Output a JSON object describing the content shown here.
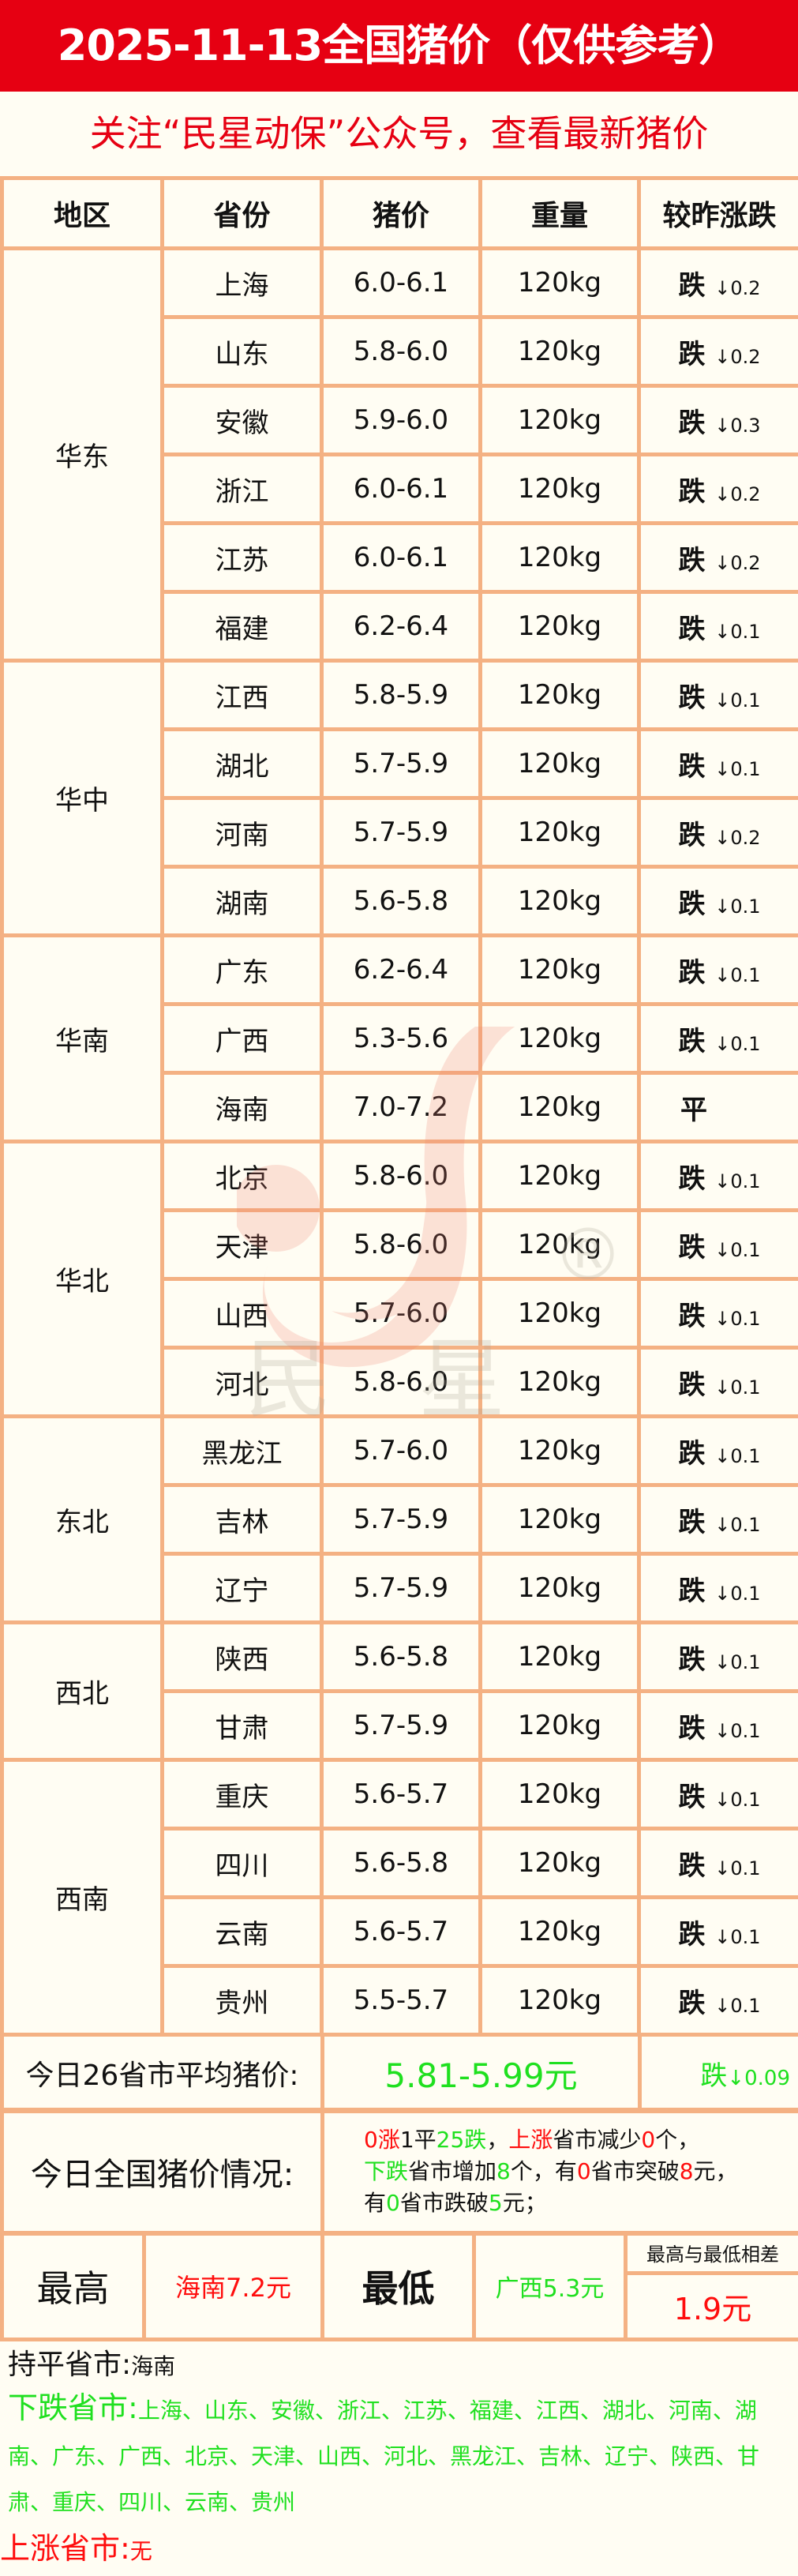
{
  "header": {
    "title": "2025-11-13全国猪价（仅供参考）",
    "subtitle": "关注“民星动保”公众号，查看最新猪价"
  },
  "colors": {
    "red": "#e60012",
    "green": "#1fe01f",
    "border": "#f4b183",
    "background": "#fffdf3"
  },
  "watermark": {
    "brand_text": "民 星",
    "registered": "®"
  },
  "table": {
    "columns": [
      "地区",
      "省份",
      "猪价",
      "重量",
      "较昨涨跌"
    ],
    "groups": [
      {
        "region": "华东",
        "rows": [
          {
            "province": "上海",
            "price": "6.0-6.1",
            "weight": "120kg",
            "trend": "跌",
            "change": "↓0.2"
          },
          {
            "province": "山东",
            "price": "5.8-6.0",
            "weight": "120kg",
            "trend": "跌",
            "change": "↓0.2"
          },
          {
            "province": "安徽",
            "price": "5.9-6.0",
            "weight": "120kg",
            "trend": "跌",
            "change": "↓0.3"
          },
          {
            "province": "浙江",
            "price": "6.0-6.1",
            "weight": "120kg",
            "trend": "跌",
            "change": "↓0.2"
          },
          {
            "province": "江苏",
            "price": "6.0-6.1",
            "weight": "120kg",
            "trend": "跌",
            "change": "↓0.2"
          },
          {
            "province": "福建",
            "price": "6.2-6.4",
            "weight": "120kg",
            "trend": "跌",
            "change": "↓0.1"
          }
        ]
      },
      {
        "region": "华中",
        "rows": [
          {
            "province": "江西",
            "price": "5.8-5.9",
            "weight": "120kg",
            "trend": "跌",
            "change": "↓0.1"
          },
          {
            "province": "湖北",
            "price": "5.7-5.9",
            "weight": "120kg",
            "trend": "跌",
            "change": "↓0.1"
          },
          {
            "province": "河南",
            "price": "5.7-5.9",
            "weight": "120kg",
            "trend": "跌",
            "change": "↓0.2"
          },
          {
            "province": "湖南",
            "price": "5.6-5.8",
            "weight": "120kg",
            "trend": "跌",
            "change": "↓0.1"
          }
        ]
      },
      {
        "region": "华南",
        "rows": [
          {
            "province": "广东",
            "price": "6.2-6.4",
            "weight": "120kg",
            "trend": "跌",
            "change": "↓0.1"
          },
          {
            "province": "广西",
            "price": "5.3-5.6",
            "weight": "120kg",
            "trend": "跌",
            "change": "↓0.1"
          },
          {
            "province": "海南",
            "price": "7.0-7.2",
            "weight": "120kg",
            "trend": "平",
            "change": ""
          }
        ]
      },
      {
        "region": "华北",
        "rows": [
          {
            "province": "北京",
            "price": "5.8-6.0",
            "weight": "120kg",
            "trend": "跌",
            "change": "↓0.1"
          },
          {
            "province": "天津",
            "price": "5.8-6.0",
            "weight": "120kg",
            "trend": "跌",
            "change": "↓0.1"
          },
          {
            "province": "山西",
            "price": "5.7-6.0",
            "weight": "120kg",
            "trend": "跌",
            "change": "↓0.1"
          },
          {
            "province": "河北",
            "price": "5.8-6.0",
            "weight": "120kg",
            "trend": "跌",
            "change": "↓0.1"
          }
        ]
      },
      {
        "region": "东北",
        "rows": [
          {
            "province": "黑龙江",
            "price": "5.7-6.0",
            "weight": "120kg",
            "trend": "跌",
            "change": "↓0.1"
          },
          {
            "province": "吉林",
            "price": "5.7-5.9",
            "weight": "120kg",
            "trend": "跌",
            "change": "↓0.1"
          },
          {
            "province": "辽宁",
            "price": "5.7-5.9",
            "weight": "120kg",
            "trend": "跌",
            "change": "↓0.1"
          }
        ]
      },
      {
        "region": "西北",
        "rows": [
          {
            "province": "陕西",
            "price": "5.6-5.8",
            "weight": "120kg",
            "trend": "跌",
            "change": "↓0.1"
          },
          {
            "province": "甘肃",
            "price": "5.7-5.9",
            "weight": "120kg",
            "trend": "跌",
            "change": "↓0.1"
          }
        ]
      },
      {
        "region": "西南",
        "rows": [
          {
            "province": "重庆",
            "price": "5.6-5.7",
            "weight": "120kg",
            "trend": "跌",
            "change": "↓0.1"
          },
          {
            "province": "四川",
            "price": "5.6-5.8",
            "weight": "120kg",
            "trend": "跌",
            "change": "↓0.1"
          },
          {
            "province": "云南",
            "price": "5.6-5.7",
            "weight": "120kg",
            "trend": "跌",
            "change": "↓0.1"
          },
          {
            "province": "贵州",
            "price": "5.5-5.7",
            "weight": "120kg",
            "trend": "跌",
            "change": "↓0.1"
          }
        ]
      }
    ]
  },
  "average": {
    "label": "今日26省市平均猪价:",
    "value": "5.81-5.99元",
    "trend": "跌",
    "change": "↓0.09"
  },
  "situation": {
    "label": "今日全国猪价情况:",
    "lines": [
      [
        {
          "t": "0",
          "c": "r"
        },
        {
          "t": "涨",
          "c": "r"
        },
        {
          "t": "1平",
          "c": ""
        },
        {
          "t": "25跌",
          "c": "g"
        },
        {
          "t": "，",
          "c": ""
        },
        {
          "t": "上涨",
          "c": "r"
        },
        {
          "t": "省市减少",
          "c": ""
        },
        {
          "t": "0",
          "c": "r"
        },
        {
          "t": "个，",
          "c": ""
        }
      ],
      [
        {
          "t": "下跌",
          "c": "g"
        },
        {
          "t": "省市增加",
          "c": ""
        },
        {
          "t": "8",
          "c": "g"
        },
        {
          "t": "个，有",
          "c": ""
        },
        {
          "t": "0",
          "c": "r"
        },
        {
          "t": "省市突破",
          "c": ""
        },
        {
          "t": "8",
          "c": "r"
        },
        {
          "t": "元，",
          "c": ""
        }
      ],
      [
        {
          "t": "有",
          "c": ""
        },
        {
          "t": "0",
          "c": "g"
        },
        {
          "t": "省市跌破",
          "c": ""
        },
        {
          "t": "5",
          "c": "g"
        },
        {
          "t": "元；",
          "c": ""
        }
      ]
    ]
  },
  "extremes": {
    "high_label": "最高",
    "high_value": "海南7.2元",
    "low_label": "最低",
    "low_value": "广西5.3元",
    "diff_label": "最高与最低相差",
    "diff_value": "1.9元"
  },
  "summary": {
    "flat_label": "持平省市:",
    "flat_value": "海南",
    "down_label": "下跌省市:",
    "down_value": "上海、山东、安徽、浙江、江苏、福建、江西、湖北、河南、湖南、广东、广西、北京、天津、山西、河北、黑龙江、吉林、辽宁、陕西、甘肃、重庆、四川、云南、贵州",
    "up_label": "上涨省市:",
    "up_value": "无"
  }
}
